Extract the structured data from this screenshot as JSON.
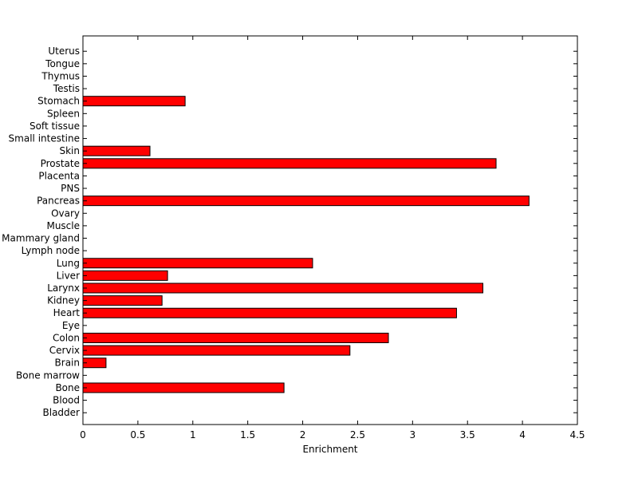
{
  "chart_data": {
    "type": "bar",
    "orientation": "horizontal",
    "categories": [
      "Bladder",
      "Blood",
      "Bone",
      "Bone marrow",
      "Brain",
      "Cervix",
      "Colon",
      "Eye",
      "Heart",
      "Kidney",
      "Larynx",
      "Liver",
      "Lung",
      "Lymph node",
      "Mammary gland",
      "Muscle",
      "Ovary",
      "Pancreas",
      "PNS",
      "Placenta",
      "Prostate",
      "Skin",
      "Small intestine",
      "Soft tissue",
      "Spleen",
      "Stomach",
      "Testis",
      "Thymus",
      "Tongue",
      "Uterus"
    ],
    "values": [
      0,
      0,
      1.83,
      0,
      0.21,
      2.43,
      2.78,
      0,
      3.4,
      0.72,
      3.64,
      0.77,
      2.09,
      0,
      0,
      0,
      0,
      4.06,
      0,
      0,
      3.76,
      0.61,
      0,
      0,
      0,
      0.93,
      0,
      0,
      0,
      0
    ],
    "xlabel": "Enrichment",
    "ylabel": "",
    "xlim": [
      0,
      4.5
    ],
    "xticks": [
      "0",
      "0.5",
      "1",
      "1.5",
      "2",
      "2.5",
      "3",
      "3.5",
      "4",
      "4.5"
    ],
    "bar_color": "#ff0000",
    "grid": false
  }
}
